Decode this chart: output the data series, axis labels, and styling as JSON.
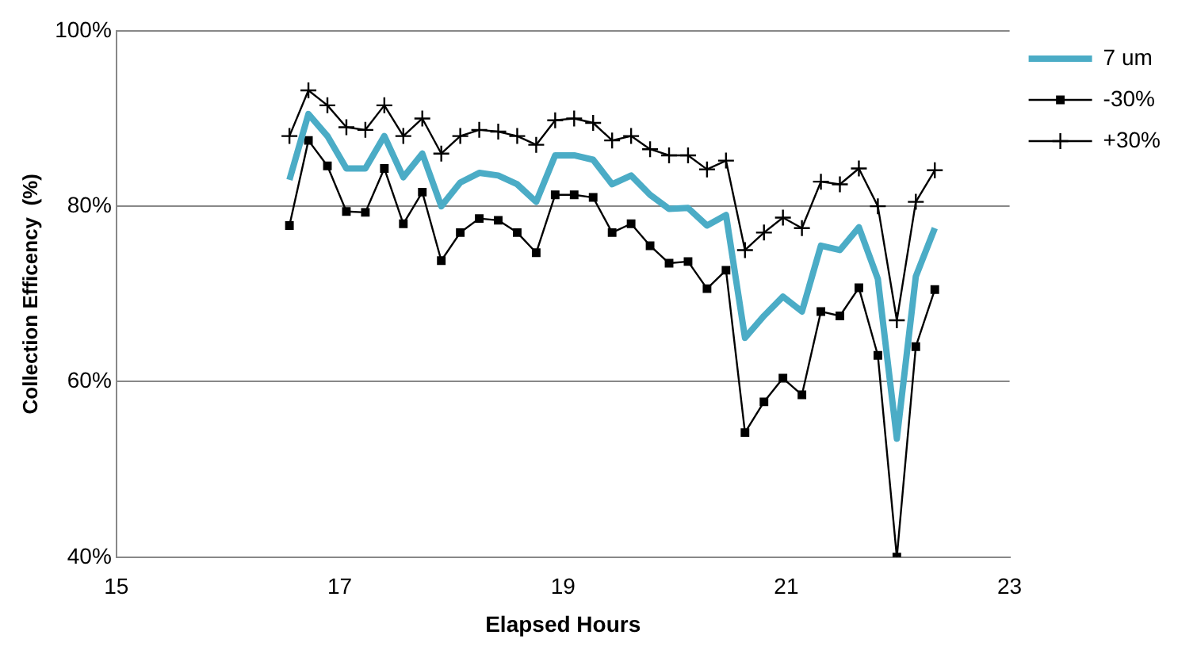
{
  "chart_data": {
    "type": "line",
    "xlabel": "Elapsed Hours",
    "ylabel": "Collection Efficency  (%)",
    "x": [
      16.55,
      16.72,
      16.89,
      17.06,
      17.23,
      17.4,
      17.57,
      17.74,
      17.91,
      18.08,
      18.25,
      18.42,
      18.59,
      18.76,
      18.93,
      19.1,
      19.27,
      19.44,
      19.61,
      19.78,
      19.95,
      20.12,
      20.29,
      20.46,
      20.63,
      20.8,
      20.97,
      21.14,
      21.31,
      21.48,
      21.65,
      21.82,
      21.99,
      22.16,
      22.33
    ],
    "series": [
      {
        "name": "7 um",
        "color": "#4bacc6",
        "marker": "none",
        "values": [
          83,
          90.5,
          88,
          84.3,
          84.3,
          88,
          83.3,
          86,
          80,
          82.7,
          83.8,
          83.5,
          82.5,
          80.5,
          85.8,
          85.8,
          85.3,
          82.5,
          83.5,
          81.3,
          79.7,
          79.8,
          77.8,
          79,
          65,
          67.5,
          69.7,
          68,
          75.5,
          75,
          77.6,
          71.7,
          53.5,
          72,
          77.5
        ]
      },
      {
        "name": "-30%",
        "color": "#000000",
        "marker": "square",
        "values": [
          77.8,
          87.5,
          84.6,
          79.4,
          79.3,
          84.3,
          78,
          81.6,
          73.8,
          77,
          78.6,
          78.4,
          77,
          74.7,
          81.3,
          81.3,
          81,
          77,
          78,
          75.5,
          73.5,
          73.7,
          70.6,
          72.7,
          54.2,
          57.7,
          60.4,
          58.5,
          68,
          67.5,
          70.7,
          63,
          40,
          64,
          70.5
        ]
      },
      {
        "name": "+30%",
        "color": "#000000",
        "marker": "cross",
        "values": [
          88,
          93.2,
          91.5,
          89,
          88.7,
          91.5,
          88,
          90,
          86,
          88,
          88.7,
          88.5,
          88,
          87,
          89.8,
          90,
          89.5,
          87.5,
          88,
          86.5,
          85.8,
          85.8,
          84.2,
          85.2,
          75,
          77,
          78.7,
          77.5,
          82.8,
          82.5,
          84.3,
          80,
          67,
          80.5,
          84.1
        ]
      }
    ],
    "xlim": [
      15,
      23
    ],
    "xticks": [
      15,
      17,
      19,
      21,
      23
    ],
    "ylim": [
      40,
      100
    ],
    "yticks": [
      {
        "value": 40,
        "label": "40%"
      },
      {
        "value": 60,
        "label": "60%"
      },
      {
        "value": 80,
        "label": "80%"
      },
      {
        "value": 100,
        "label": "100%"
      }
    ],
    "grid": "y",
    "legend": "right"
  }
}
